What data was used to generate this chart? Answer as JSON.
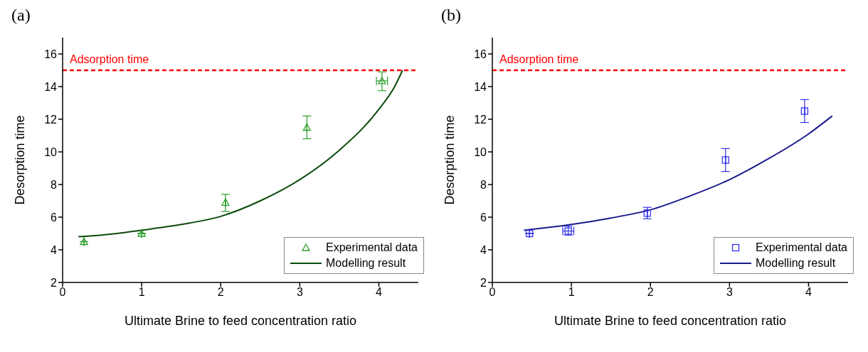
{
  "chart_data": [
    {
      "type": "scatter",
      "title": "(a)",
      "xlabel": "Ultimate Brine to feed concentration ratio",
      "ylabel": "Desorption time",
      "xlim": [
        0,
        4.5
      ],
      "xticks": [
        0,
        1,
        2,
        3,
        4
      ],
      "ylim": [
        2,
        17
      ],
      "yticks": [
        2,
        4,
        6,
        8,
        10,
        12,
        14,
        16
      ],
      "grid": false,
      "legend": "bottom right",
      "ref_lines": [
        {
          "axis": "y",
          "value": 15,
          "label": "Adsorption time",
          "color": "#ff0000",
          "line_style": "dashed"
        }
      ],
      "series": [
        {
          "name": "Experimental data",
          "type": "scatter",
          "marker": "triangle",
          "color": "#2ca02c",
          "x": [
            0.27,
            1.0,
            2.06,
            3.09,
            4.04
          ],
          "values": [
            4.5,
            5.0,
            6.9,
            11.5,
            14.35
          ],
          "errors": [
            null,
            null,
            [
              6.35,
              7.4
            ],
            [
              10.8,
              12.2
            ],
            [
              13.75,
              14.9
            ]
          ],
          "xerrors": [
            null,
            null,
            null,
            null,
            0.07
          ]
        },
        {
          "name": "Modelling result",
          "type": "line",
          "marker": "none",
          "color": "#0b4a0b",
          "x": [
            0.2,
            0.5,
            1.0,
            1.5,
            2.0,
            2.5,
            3.0,
            3.5,
            4.0,
            4.2,
            4.3
          ],
          "values": [
            4.8,
            4.9,
            5.2,
            5.55,
            6.05,
            7.0,
            8.3,
            10.1,
            12.6,
            14.0,
            15.0
          ]
        }
      ]
    },
    {
      "type": "scatter",
      "title": "(b)",
      "xlabel": "Ultimate Brine to feed concentration ratio",
      "ylabel": "Desorption time",
      "xlim": [
        0,
        4.5
      ],
      "xticks": [
        0,
        1,
        2,
        3,
        4
      ],
      "ylim": [
        2,
        17
      ],
      "yticks": [
        2,
        4,
        6,
        8,
        10,
        12,
        14,
        16
      ],
      "grid": false,
      "legend": "bottom right",
      "ref_lines": [
        {
          "axis": "y",
          "value": 15,
          "label": "Adsorption time",
          "color": "#ff0000",
          "line_style": "dashed"
        }
      ],
      "series": [
        {
          "name": "Experimental data",
          "type": "scatter",
          "marker": "square",
          "color": "#3333ee",
          "x": [
            0.47,
            0.96,
            1.96,
            2.95,
            3.95
          ],
          "values": [
            5.0,
            5.15,
            6.25,
            9.5,
            12.5
          ],
          "errors": [
            null,
            [
              4.9,
              5.45
            ],
            [
              5.9,
              6.6
            ],
            [
              8.8,
              10.2
            ],
            [
              11.8,
              13.2
            ]
          ],
          "xerrors": [
            null,
            0.07,
            null,
            null,
            null
          ]
        },
        {
          "name": "Modelling result",
          "type": "line",
          "marker": "none",
          "color": "#1a1a8c",
          "x": [
            0.4,
            1.0,
            1.5,
            2.0,
            2.5,
            3.0,
            3.5,
            4.0,
            4.3
          ],
          "values": [
            5.2,
            5.55,
            5.95,
            6.45,
            7.3,
            8.3,
            9.6,
            11.1,
            12.2
          ]
        }
      ]
    }
  ]
}
